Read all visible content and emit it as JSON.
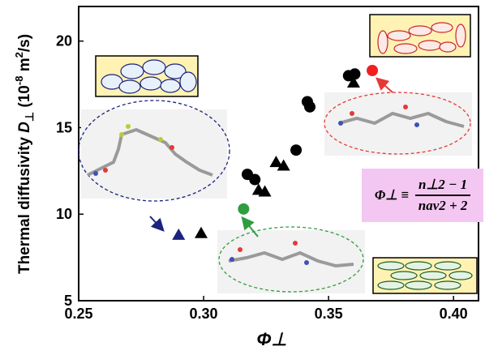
{
  "chart_data": {
    "type": "scatter",
    "title": "",
    "xlabel": "Φ⊥",
    "ylabel": "Thermal diffusivity D⊥ (10-8 m2/s)",
    "ylabel_parts": {
      "prefix": "Thermal diffusivity ",
      "symbol": "D",
      "symbol_sub": "⊥",
      "unit_open": " (10",
      "unit_exp": "-8",
      "unit_mid": " m",
      "unit_exp2": "2",
      "unit_close": "/s)"
    },
    "xlim": [
      0.25,
      0.41
    ],
    "ylim": [
      5,
      22
    ],
    "xticks": [
      "0.25",
      "0.30",
      "0.35",
      "0.40"
    ],
    "xtick_values": [
      0.25,
      0.3,
      0.35,
      0.4
    ],
    "yticks": [
      "5",
      "10",
      "15",
      "20"
    ],
    "ytick_values": [
      5,
      10,
      15,
      20
    ],
    "series": [
      {
        "marker": "circle",
        "color": "#000000",
        "points": [
          {
            "x": 0.3175,
            "y": 12.3
          },
          {
            "x": 0.3205,
            "y": 12.0
          },
          {
            "x": 0.337,
            "y": 13.7
          },
          {
            "x": 0.3415,
            "y": 16.5
          },
          {
            "x": 0.3425,
            "y": 16.2
          },
          {
            "x": 0.358,
            "y": 18.0
          },
          {
            "x": 0.3605,
            "y": 18.1
          }
        ]
      },
      {
        "marker": "triangle",
        "color": "#000000",
        "points": [
          {
            "x": 0.299,
            "y": 8.9
          },
          {
            "x": 0.322,
            "y": 11.4
          },
          {
            "x": 0.3245,
            "y": 11.3
          },
          {
            "x": 0.329,
            "y": 13.0
          },
          {
            "x": 0.332,
            "y": 12.8
          },
          {
            "x": 0.36,
            "y": 17.6
          }
        ]
      },
      {
        "marker": "triangle",
        "color": "#1a237e",
        "points": [
          {
            "x": 0.29,
            "y": 8.8
          }
        ]
      },
      {
        "marker": "circle",
        "color": "#2e9e3e",
        "points": [
          {
            "x": 0.316,
            "y": 10.3
          }
        ]
      },
      {
        "marker": "circle",
        "color": "#f21f1f",
        "points": [
          {
            "x": 0.3675,
            "y": 18.3
          }
        ]
      }
    ],
    "annotations": {
      "formula": {
        "lhs": "Φ⊥ ≡",
        "numerator": "n⊥2 − 1",
        "denominator": "nav2 + 2"
      },
      "box_color": "#f4c7f2",
      "blue_ellipse_color": "#1a237e",
      "green_ellipse_color": "#2e9e3e",
      "red_ellipse_color": "#e53935",
      "inset_fill": "#fff2b3"
    }
  }
}
